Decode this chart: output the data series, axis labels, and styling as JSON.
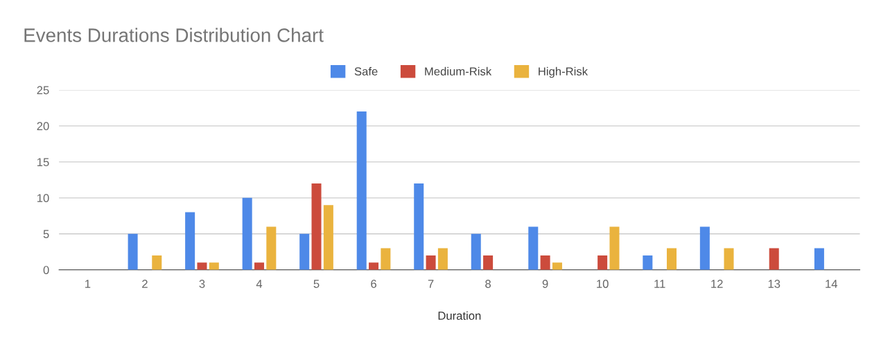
{
  "chart_data": {
    "type": "bar",
    "title": "Events Durations Distribution Chart",
    "xlabel": "Duration",
    "categories": [
      "1",
      "2",
      "3",
      "4",
      "5",
      "6",
      "7",
      "8",
      "9",
      "10",
      "11",
      "12",
      "13",
      "14"
    ],
    "series": [
      {
        "name": "Safe",
        "color": "#4e89e8",
        "values": [
          0,
          5,
          8,
          10,
          5,
          22,
          12,
          5,
          6,
          0,
          2,
          6,
          0,
          3
        ]
      },
      {
        "name": "Medium-Risk",
        "color": "#cc4b3c",
        "values": [
          0,
          0,
          1,
          1,
          12,
          1,
          2,
          2,
          2,
          2,
          0,
          0,
          3,
          0
        ]
      },
      {
        "name": "High-Risk",
        "color": "#eab33e",
        "values": [
          0,
          2,
          1,
          6,
          9,
          3,
          3,
          0,
          1,
          6,
          3,
          3,
          0,
          0
        ]
      }
    ],
    "ylim": [
      0,
      25
    ],
    "yticks": [
      0,
      5,
      10,
      15,
      20,
      25
    ],
    "grid": "y",
    "legend": "top"
  }
}
